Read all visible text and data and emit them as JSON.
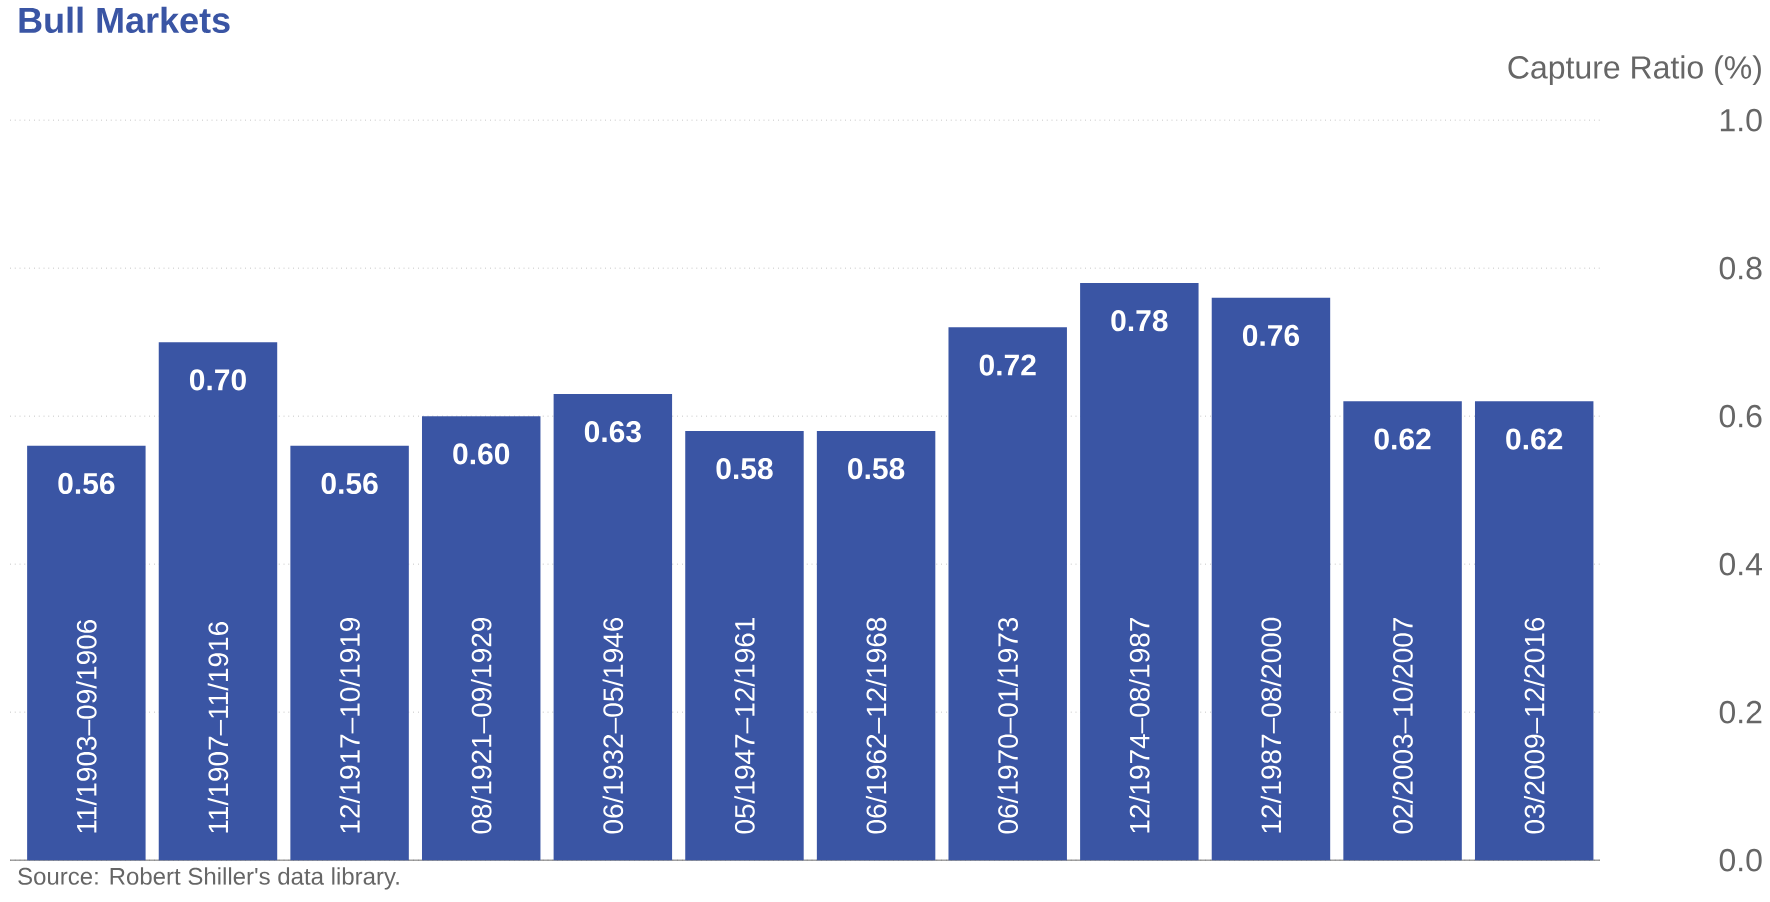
{
  "chart_data": {
    "type": "bar",
    "title": "Bull Markets",
    "ylabel": "Capture Ratio (%)",
    "categories": [
      "11/1903–09/1906",
      "11/1907–11/1916",
      "12/1917–10/1919",
      "08/1921–09/1929",
      "06/1932–05/1946",
      "05/1947–12/1961",
      "06/1962–12/1968",
      "06/1970–01/1973",
      "12/1974–08/1987",
      "12/1987–08/2000",
      "02/2003–10/2007",
      "03/2009–12/2016"
    ],
    "values": [
      0.56,
      0.7,
      0.56,
      0.6,
      0.63,
      0.58,
      0.58,
      0.72,
      0.78,
      0.76,
      0.62,
      0.62
    ],
    "value_labels": [
      "0.56",
      "0.70",
      "0.56",
      "0.60",
      "0.63",
      "0.58",
      "0.58",
      "0.72",
      "0.78",
      "0.76",
      "0.62",
      "0.62"
    ],
    "color": "#3a55a4",
    "ylim": [
      0,
      1.0
    ],
    "yticks": [
      {
        "value": 0,
        "label": "0.0"
      },
      {
        "value": 0.2,
        "label": "0.2"
      },
      {
        "value": 0.4,
        "label": "0.4"
      },
      {
        "value": 0.6,
        "label": "0.6"
      },
      {
        "value": 0.8,
        "label": "0.8"
      },
      {
        "value": 1.0,
        "label": "1.0"
      }
    ],
    "grid": "y",
    "annotations": [
      "Source: Robert Shiller's data library."
    ]
  }
}
